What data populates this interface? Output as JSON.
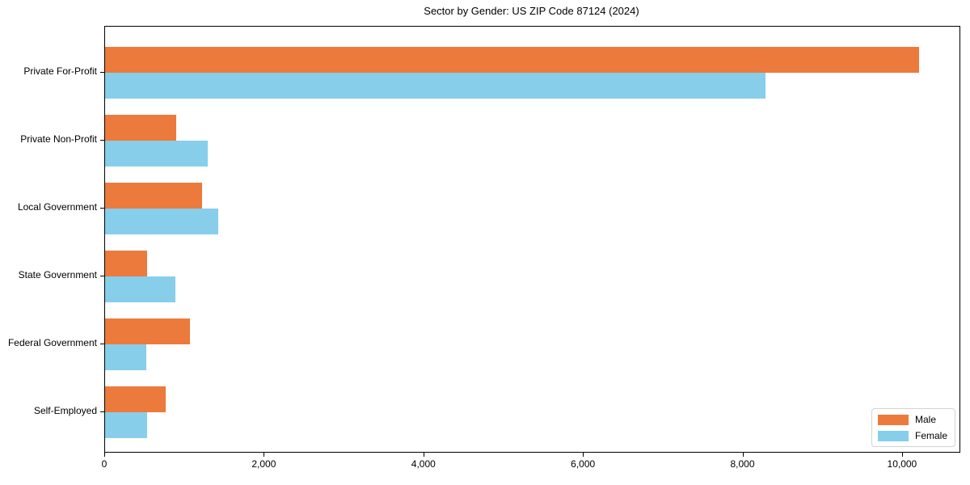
{
  "title": "Sector by Gender: US ZIP Code 87124 (2024)",
  "colors": {
    "male": "#EC7A3C",
    "female": "#87CEEB",
    "axis": "#000000",
    "legend_border": "#D3D3D3",
    "background": "#FFFFFF"
  },
  "legend": {
    "position": "lower right",
    "items": [
      {
        "label": "Male",
        "color": "#EC7A3C"
      },
      {
        "label": "Female",
        "color": "#87CEEB"
      }
    ]
  },
  "chart_data": {
    "type": "bar",
    "orientation": "horizontal",
    "title": "Sector by Gender: US ZIP Code 87124 (2024)",
    "xlabel": "",
    "ylabel": "",
    "categories": [
      "Private For-Profit",
      "Private Non-Profit",
      "Local Government",
      "State Government",
      "Federal Government",
      "Self-Employed"
    ],
    "series": [
      {
        "name": "Male",
        "color": "#EC7A3C",
        "values": [
          10200,
          890,
          1220,
          530,
          1060,
          760
        ]
      },
      {
        "name": "Female",
        "color": "#87CEEB",
        "values": [
          8280,
          1290,
          1420,
          880,
          520,
          530
        ]
      }
    ],
    "xlim": [
      0,
      10710
    ],
    "xticks": [
      0,
      2000,
      4000,
      6000,
      8000,
      10000
    ],
    "xtick_labels": [
      "0",
      "2,000",
      "4,000",
      "6,000",
      "8,000",
      "10,000"
    ],
    "grid": false,
    "legend_position": "lower right"
  }
}
